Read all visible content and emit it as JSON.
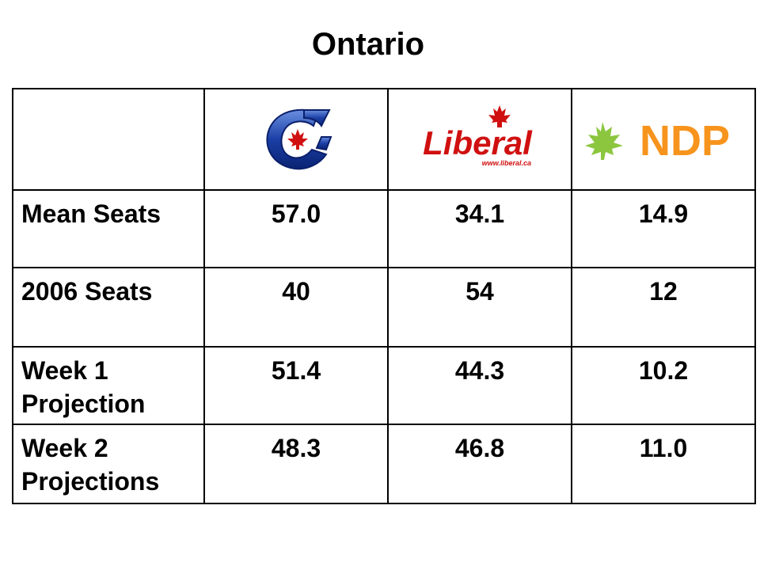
{
  "slide": {
    "title": "Ontario"
  },
  "parties": [
    {
      "id": "conservative",
      "icon": "conservative-party-logo-icon",
      "color": "#1b3fa6",
      "accent": "#d01010"
    },
    {
      "id": "liberal",
      "icon": "liberal-party-logo-icon",
      "logo_text": "Liberal",
      "logo_url_text": "www.liberal.ca",
      "color": "#d01010"
    },
    {
      "id": "ndp",
      "icon": "ndp-party-logo-icon",
      "logo_text": "NDP",
      "color": "#f7941d",
      "accent": "#8cc63f"
    }
  ],
  "table": {
    "rows": [
      {
        "label": "Mean Seats",
        "values": [
          "57.0",
          "34.1",
          "14.9"
        ]
      },
      {
        "label": "2006 Seats",
        "values": [
          "40",
          "54",
          "12"
        ]
      },
      {
        "label": "Week 1 Projection",
        "values": [
          "51.4",
          "44.3",
          "10.2"
        ]
      },
      {
        "label": "Week 2 Projections",
        "values": [
          "48.3",
          "46.8",
          "11.0"
        ]
      }
    ]
  }
}
